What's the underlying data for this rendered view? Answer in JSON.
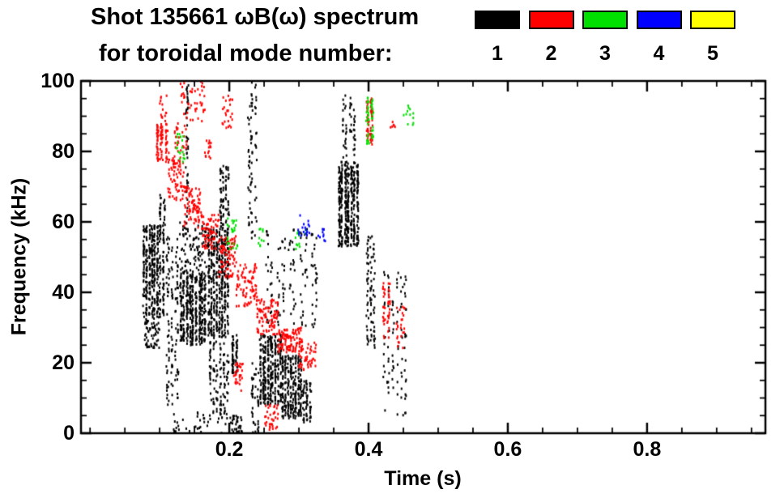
{
  "header": {
    "title": "Shot 135661 ωB(ω) spectrum",
    "subtitle": "for toroidal mode number:"
  },
  "legend": {
    "items": [
      {
        "label": "1",
        "color": "#000000"
      },
      {
        "label": "2",
        "color": "#ff0000"
      },
      {
        "label": "3",
        "color": "#00e000"
      },
      {
        "label": "4",
        "color": "#0000ff"
      },
      {
        "label": "5",
        "color": "#ffff00"
      }
    ]
  },
  "chart_data": {
    "type": "scatter",
    "title": "Shot 135661 ωB(ω) spectrum for toroidal mode number 1-5",
    "xlabel": "Time (s)",
    "ylabel": "Frequency (kHz)",
    "xlim": [
      -0.013,
      0.97
    ],
    "ylim": [
      0,
      100
    ],
    "grid": false,
    "legend_position": "top-right",
    "x_ticks": {
      "major": [
        0.2,
        0.4,
        0.6,
        0.8
      ],
      "labels": [
        "0.2",
        "0.4",
        "0.6",
        "0.8"
      ],
      "minor_step": 0.05
    },
    "y_ticks": {
      "major": [
        0,
        20,
        40,
        60,
        80,
        100
      ],
      "labels": [
        "0",
        "20",
        "40",
        "60",
        "80",
        "100"
      ],
      "minor_step": 5
    },
    "series": [
      {
        "name": "mode 1",
        "label": "1",
        "color": "#000000",
        "clusters": [
          {
            "t": [
              0.075,
              0.107
            ],
            "f": [
              33,
              59
            ],
            "n": 380,
            "streaks": 8
          },
          {
            "t": [
              0.078,
              0.1
            ],
            "f": [
              24,
              33
            ],
            "n": 60,
            "streaks": 0
          },
          {
            "t": [
              0.108,
              0.128
            ],
            "f": [
              8,
              56
            ],
            "n": 120,
            "streaks": 5
          },
          {
            "t": [
              0.128,
              0.168
            ],
            "f": [
              25,
              46
            ],
            "n": 420,
            "streaks": 9
          },
          {
            "t": [
              0.128,
              0.168
            ],
            "f": [
              46,
              60
            ],
            "n": 90,
            "streaks": 0
          },
          {
            "t": [
              0.136,
              0.143
            ],
            "f": [
              60,
              99
            ],
            "n": 45,
            "streaks": 1
          },
          {
            "t": [
              0.168,
              0.2
            ],
            "f": [
              27,
              58
            ],
            "n": 420,
            "streaks": 8
          },
          {
            "t": [
              0.17,
              0.2
            ],
            "f": [
              5,
              26
            ],
            "n": 110,
            "streaks": 6
          },
          {
            "t": [
              0.185,
              0.2
            ],
            "f": [
              58,
              76
            ],
            "n": 80,
            "streaks": 4
          },
          {
            "t": [
              0.203,
              0.214
            ],
            "f": [
              17,
              28
            ],
            "n": 60,
            "streaks": 2
          },
          {
            "t": [
              0.2,
              0.22
            ],
            "f": [
              0,
              5
            ],
            "n": 30,
            "streaks": 0
          },
          {
            "t": [
              0.12,
              0.2
            ],
            "f": [
              0,
              6
            ],
            "n": 40,
            "streaks": 0
          },
          {
            "t": [
              0.225,
              0.24
            ],
            "f": [
              55,
              100
            ],
            "n": 70,
            "streaks": 3
          },
          {
            "t": [
              0.23,
              0.245
            ],
            "f": [
              0,
              20
            ],
            "n": 40,
            "streaks": 3
          },
          {
            "t": [
              0.243,
              0.275
            ],
            "f": [
              8,
              28
            ],
            "n": 300,
            "streaks": 9
          },
          {
            "t": [
              0.275,
              0.305
            ],
            "f": [
              4,
              22
            ],
            "n": 260,
            "streaks": 8
          },
          {
            "t": [
              0.305,
              0.318
            ],
            "f": [
              3,
              15
            ],
            "n": 60,
            "streaks": 3
          },
          {
            "t": [
              0.25,
              0.33
            ],
            "f": [
              30,
              58
            ],
            "n": 130,
            "streaks": 10
          },
          {
            "t": [
              0.355,
              0.386
            ],
            "f": [
              53,
              77
            ],
            "n": 420,
            "streaks": 7
          },
          {
            "t": [
              0.36,
              0.382
            ],
            "f": [
              78,
              96
            ],
            "n": 50,
            "streaks": 4
          },
          {
            "t": [
              0.395,
              0.412
            ],
            "f": [
              24,
              56
            ],
            "n": 80,
            "streaks": 3
          },
          {
            "t": [
              0.42,
              0.455
            ],
            "f": [
              5,
              46
            ],
            "n": 90,
            "streaks": 6
          },
          {
            "t": [
              0.1,
              0.11
            ],
            "f": [
              58,
              68
            ],
            "n": 25,
            "streaks": 2
          }
        ]
      },
      {
        "name": "mode 2",
        "label": "2",
        "color": "#ff0000",
        "clusters": [
          {
            "t": [
              0.094,
              0.112
            ],
            "f": [
              77,
              88
            ],
            "n": 90,
            "streaks": 3
          },
          {
            "t": [
              0.1,
              0.11
            ],
            "f": [
              88,
              96
            ],
            "n": 15,
            "streaks": 0
          },
          {
            "t": [
              0.112,
              0.135
            ],
            "f": [
              66,
              80
            ],
            "n": 70,
            "streaks": 0
          },
          {
            "t": [
              0.12,
              0.14
            ],
            "f": [
              80,
              88
            ],
            "n": 25,
            "streaks": 0
          },
          {
            "t": [
              0.135,
              0.16
            ],
            "f": [
              58,
              70
            ],
            "n": 80,
            "streaks": 0
          },
          {
            "t": [
              0.13,
              0.165
            ],
            "f": [
              88,
              100
            ],
            "n": 45,
            "streaks": 0
          },
          {
            "t": [
              0.16,
              0.185
            ],
            "f": [
              52,
              62
            ],
            "n": 70,
            "streaks": 0
          },
          {
            "t": [
              0.165,
              0.175
            ],
            "f": [
              78,
              84
            ],
            "n": 15,
            "streaks": 0
          },
          {
            "t": [
              0.185,
              0.21
            ],
            "f": [
              44,
              56
            ],
            "n": 80,
            "streaks": 0
          },
          {
            "t": [
              0.19,
              0.205
            ],
            "f": [
              86,
              96
            ],
            "n": 25,
            "streaks": 0
          },
          {
            "t": [
              0.205,
              0.22
            ],
            "f": [
              12,
              20
            ],
            "n": 30,
            "streaks": 0
          },
          {
            "t": [
              0.21,
              0.24
            ],
            "f": [
              36,
              48
            ],
            "n": 80,
            "streaks": 0
          },
          {
            "t": [
              0.24,
              0.27
            ],
            "f": [
              28,
              38
            ],
            "n": 90,
            "streaks": 0
          },
          {
            "t": [
              0.25,
              0.27
            ],
            "f": [
              1,
              8
            ],
            "n": 35,
            "streaks": 0
          },
          {
            "t": [
              0.27,
              0.305
            ],
            "f": [
              23,
              30
            ],
            "n": 110,
            "streaks": 0
          },
          {
            "t": [
              0.3,
              0.325
            ],
            "f": [
              18,
              26
            ],
            "n": 45,
            "streaks": 0
          },
          {
            "t": [
              0.395,
              0.408
            ],
            "f": [
              82,
              95
            ],
            "n": 60,
            "streaks": 2
          },
          {
            "t": [
              0.418,
              0.432
            ],
            "f": [
              27,
              43
            ],
            "n": 45,
            "streaks": 2
          },
          {
            "t": [
              0.43,
              0.44
            ],
            "f": [
              86,
              90
            ],
            "n": 6,
            "streaks": 0
          },
          {
            "t": [
              0.44,
              0.452
            ],
            "f": [
              24,
              36
            ],
            "n": 25,
            "streaks": 0
          }
        ]
      },
      {
        "name": "mode 3",
        "label": "3",
        "color": "#00e000",
        "clusters": [
          {
            "t": [
              0.124,
              0.136
            ],
            "f": [
              77,
              85
            ],
            "n": 18,
            "streaks": 0
          },
          {
            "t": [
              0.197,
              0.212
            ],
            "f": [
              52,
              61
            ],
            "n": 25,
            "streaks": 0
          },
          {
            "t": [
              0.24,
              0.25
            ],
            "f": [
              53,
              58
            ],
            "n": 10,
            "streaks": 0
          },
          {
            "t": [
              0.295,
              0.31
            ],
            "f": [
              52,
              58
            ],
            "n": 12,
            "streaks": 0
          },
          {
            "t": [
              0.395,
              0.412
            ],
            "f": [
              82,
              96
            ],
            "n": 45,
            "streaks": 2
          },
          {
            "t": [
              0.45,
              0.465
            ],
            "f": [
              87,
              93
            ],
            "n": 12,
            "streaks": 0
          }
        ]
      },
      {
        "name": "mode 4",
        "label": "4",
        "color": "#0000ff",
        "clusters": [
          {
            "t": [
              0.298,
              0.315
            ],
            "f": [
              56,
              62
            ],
            "n": 18,
            "streaks": 0
          },
          {
            "t": [
              0.325,
              0.34
            ],
            "f": [
              54,
              58
            ],
            "n": 10,
            "streaks": 0
          }
        ]
      },
      {
        "name": "mode 5",
        "label": "5",
        "color": "#ffff00",
        "clusters": []
      }
    ]
  }
}
